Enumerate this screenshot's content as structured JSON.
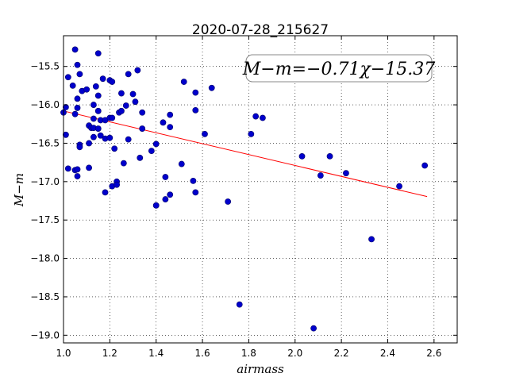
{
  "chart_data": {
    "type": "scatter",
    "title": "2020-07-28_215627",
    "xlabel": "airmass",
    "ylabel": "M−m",
    "xlim": [
      1.0,
      2.7
    ],
    "ylim": [
      -19.1,
      -15.1
    ],
    "y_inverted": false,
    "grid": true,
    "grid_style": "dotted",
    "x_ticks": [
      1.0,
      1.2,
      1.4,
      1.6,
      1.8,
      2.0,
      2.2,
      2.4,
      2.6
    ],
    "x_tick_labels": [
      "1.0",
      "1.2",
      "1.4",
      "1.6",
      "1.8",
      "2.0",
      "2.2",
      "2.4",
      "2.6"
    ],
    "y_ticks": [
      -15.5,
      -16.0,
      -16.5,
      -17.0,
      -17.5,
      -18.0,
      -18.5,
      -19.0
    ],
    "y_tick_labels": [
      "−15.5",
      "−16.0",
      "−16.5",
      "−17.0",
      "−17.5",
      "−18.0",
      "−18.5",
      "−19.0"
    ],
    "annotation": "M−m=−0.71χ−15.37",
    "colors": {
      "points": "#0000cc",
      "point_edge": "#000066",
      "fit_line": "#ff0000"
    },
    "fit": {
      "slope": -0.71,
      "intercept": -15.37,
      "x_range": [
        1.0,
        2.57
      ]
    },
    "points": [
      {
        "x": 1.05,
        "y": -15.28
      },
      {
        "x": 1.15,
        "y": -15.33
      },
      {
        "x": 1.06,
        "y": -15.48
      },
      {
        "x": 1.02,
        "y": -15.64
      },
      {
        "x": 1.07,
        "y": -15.6
      },
      {
        "x": 1.04,
        "y": -15.75
      },
      {
        "x": 1.08,
        "y": -15.82
      },
      {
        "x": 1.1,
        "y": -15.8
      },
      {
        "x": 1.06,
        "y": -15.92
      },
      {
        "x": 1.01,
        "y": -16.03
      },
      {
        "x": 1.06,
        "y": -16.04
      },
      {
        "x": 1.0,
        "y": -16.1
      },
      {
        "x": 1.05,
        "y": -16.12
      },
      {
        "x": 1.13,
        "y": -16.0
      },
      {
        "x": 1.14,
        "y": -15.76
      },
      {
        "x": 1.15,
        "y": -15.88
      },
      {
        "x": 1.17,
        "y": -15.66
      },
      {
        "x": 1.2,
        "y": -15.68
      },
      {
        "x": 1.21,
        "y": -15.7
      },
      {
        "x": 1.15,
        "y": -16.08
      },
      {
        "x": 1.13,
        "y": -16.18
      },
      {
        "x": 1.16,
        "y": -16.2
      },
      {
        "x": 1.18,
        "y": -16.2
      },
      {
        "x": 1.2,
        "y": -16.17
      },
      {
        "x": 1.21,
        "y": -16.17
      },
      {
        "x": 1.11,
        "y": -16.27
      },
      {
        "x": 1.12,
        "y": -16.3
      },
      {
        "x": 1.13,
        "y": -16.3
      },
      {
        "x": 1.15,
        "y": -16.31
      },
      {
        "x": 1.16,
        "y": -16.4
      },
      {
        "x": 1.13,
        "y": -16.42
      },
      {
        "x": 1.18,
        "y": -16.44
      },
      {
        "x": 1.2,
        "y": -16.43
      },
      {
        "x": 1.07,
        "y": -16.52
      },
      {
        "x": 1.07,
        "y": -16.55
      },
      {
        "x": 1.11,
        "y": -16.5
      },
      {
        "x": 1.01,
        "y": -16.39
      },
      {
        "x": 1.02,
        "y": -16.83
      },
      {
        "x": 1.05,
        "y": -16.85
      },
      {
        "x": 1.06,
        "y": -16.84
      },
      {
        "x": 1.06,
        "y": -16.93
      },
      {
        "x": 1.11,
        "y": -16.82
      },
      {
        "x": 1.18,
        "y": -17.14
      },
      {
        "x": 1.21,
        "y": -17.06
      },
      {
        "x": 1.23,
        "y": -17.0
      },
      {
        "x": 1.23,
        "y": -17.04
      },
      {
        "x": 1.22,
        "y": -16.57
      },
      {
        "x": 1.26,
        "y": -16.76
      },
      {
        "x": 1.24,
        "y": -16.1
      },
      {
        "x": 1.25,
        "y": -16.08
      },
      {
        "x": 1.27,
        "y": -16.01
      },
      {
        "x": 1.25,
        "y": -15.85
      },
      {
        "x": 1.28,
        "y": -15.6
      },
      {
        "x": 1.32,
        "y": -15.55
      },
      {
        "x": 1.3,
        "y": -15.86
      },
      {
        "x": 1.31,
        "y": -15.96
      },
      {
        "x": 1.34,
        "y": -16.1
      },
      {
        "x": 1.34,
        "y": -16.31
      },
      {
        "x": 1.28,
        "y": -16.45
      },
      {
        "x": 1.33,
        "y": -16.69
      },
      {
        "x": 1.38,
        "y": -16.6
      },
      {
        "x": 1.4,
        "y": -16.51
      },
      {
        "x": 1.43,
        "y": -16.23
      },
      {
        "x": 1.46,
        "y": -16.13
      },
      {
        "x": 1.46,
        "y": -16.29
      },
      {
        "x": 1.44,
        "y": -16.94
      },
      {
        "x": 1.46,
        "y": -17.17
      },
      {
        "x": 1.44,
        "y": -17.23
      },
      {
        "x": 1.4,
        "y": -17.31
      },
      {
        "x": 1.51,
        "y": -16.77
      },
      {
        "x": 1.52,
        "y": -15.7
      },
      {
        "x": 1.57,
        "y": -15.84
      },
      {
        "x": 1.57,
        "y": -16.07
      },
      {
        "x": 1.56,
        "y": -16.99
      },
      {
        "x": 1.57,
        "y": -17.14
      },
      {
        "x": 1.61,
        "y": -16.38
      },
      {
        "x": 1.64,
        "y": -15.78
      },
      {
        "x": 1.71,
        "y": -17.26
      },
      {
        "x": 1.76,
        "y": -18.6
      },
      {
        "x": 1.81,
        "y": -16.38
      },
      {
        "x": 1.83,
        "y": -16.15
      },
      {
        "x": 1.86,
        "y": -16.17
      },
      {
        "x": 2.03,
        "y": -16.67
      },
      {
        "x": 2.08,
        "y": -18.91
      },
      {
        "x": 2.11,
        "y": -16.92
      },
      {
        "x": 2.15,
        "y": -16.67
      },
      {
        "x": 2.22,
        "y": -16.89
      },
      {
        "x": 2.33,
        "y": -17.75
      },
      {
        "x": 2.45,
        "y": -17.06
      },
      {
        "x": 2.56,
        "y": -16.79
      }
    ]
  }
}
